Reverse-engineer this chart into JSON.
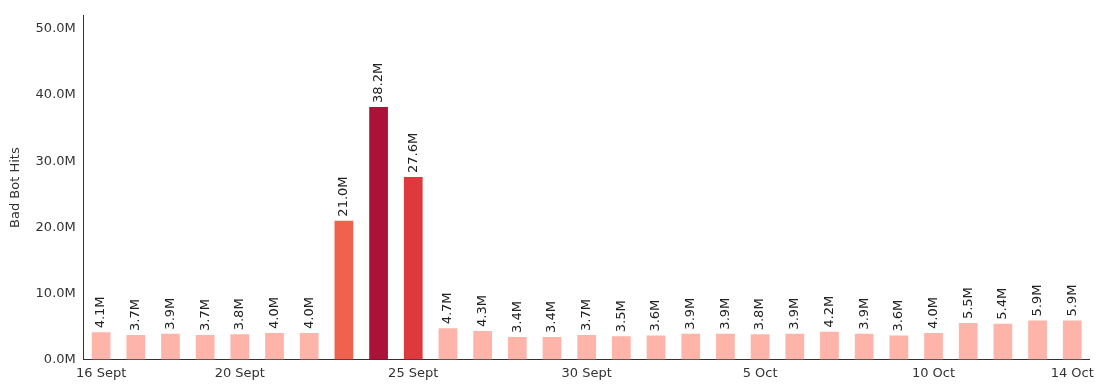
{
  "chart_data": {
    "type": "bar",
    "ylabel": "Bad Bot Hits",
    "categories": [
      "16 Sept",
      null,
      null,
      null,
      "20 Sept",
      null,
      null,
      null,
      null,
      "25 Sept",
      null,
      null,
      null,
      null,
      "30 Sept",
      null,
      null,
      null,
      null,
      "5 Oct",
      null,
      null,
      null,
      null,
      "10 Oct",
      null,
      null,
      null,
      "14 Oct"
    ],
    "values": [
      4.1,
      3.7,
      3.9,
      3.7,
      3.8,
      4.0,
      4.0,
      21.0,
      38.2,
      27.6,
      4.7,
      4.3,
      3.4,
      3.4,
      3.7,
      3.5,
      3.6,
      3.9,
      3.9,
      3.8,
      3.9,
      4.2,
      3.9,
      3.6,
      4.0,
      5.5,
      5.4,
      5.9,
      5.9
    ],
    "value_labels": [
      "4.1M",
      "3.7M",
      "3.9M",
      "3.7M",
      "3.8M",
      "4.0M",
      "4.0M",
      "21.0M",
      "38.2M",
      "27.6M",
      "4.7M",
      "4.3M",
      "3.4M",
      "3.4M",
      "3.7M",
      "3.5M",
      "3.6M",
      "3.9M",
      "3.9M",
      "3.8M",
      "3.9M",
      "4.2M",
      "3.9M",
      "3.6M",
      "4.0M",
      "5.5M",
      "5.4M",
      "5.9M",
      "5.9M"
    ],
    "colors": [
      "#ffb4a9",
      "#ffb4a9",
      "#ffb4a9",
      "#ffb4a9",
      "#ffb4a9",
      "#ffb4a9",
      "#ffb4a9",
      "#f0624d",
      "#ac1238",
      "#de3a3e",
      "#ffb4a9",
      "#ffb4a9",
      "#ffb4a9",
      "#ffb4a9",
      "#ffb4a9",
      "#ffb4a9",
      "#ffb4a9",
      "#ffb4a9",
      "#ffb4a9",
      "#ffb4a9",
      "#ffb4a9",
      "#ffb4a9",
      "#ffb4a9",
      "#ffb4a9",
      "#ffb4a9",
      "#ffb4a9",
      "#ffb4a9",
      "#ffb4a9",
      "#ffb4a9"
    ],
    "ylim": [
      0,
      52
    ],
    "yticks": [
      {
        "value": 0,
        "label": "0.0M"
      },
      {
        "value": 10,
        "label": "10.0M"
      },
      {
        "value": 20,
        "label": "20.0M"
      },
      {
        "value": 30,
        "label": "30.0M"
      },
      {
        "value": 40,
        "label": "40.0M"
      },
      {
        "value": 50,
        "label": "50.0M"
      }
    ],
    "grid": false,
    "legend": false
  }
}
